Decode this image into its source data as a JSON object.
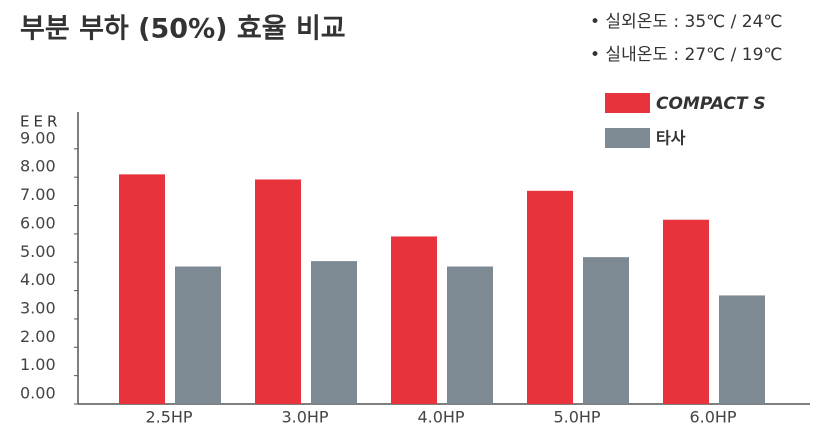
{
  "chart_data": {
    "type": "bar",
    "title": "부분 부하 (50%) 효율 비교",
    "notes": [
      "• 실외온도 : 35℃ / 24℃",
      "• 실내온도 : 27℃ / 19℃"
    ],
    "y_label": "EER",
    "categories": [
      "2.5HP",
      "3.0HP",
      "4.0HP",
      "5.0HP",
      "6.0HP"
    ],
    "series": [
      {
        "name": "COMPACT S",
        "color": "#e8323c",
        "values": [
          8.1,
          7.92,
          5.91,
          7.52,
          6.5
        ]
      },
      {
        "name": "타사",
        "color": "#7d8a93",
        "values": [
          4.85,
          5.04,
          4.85,
          5.18,
          3.83
        ]
      }
    ],
    "ylim": [
      0,
      10.3
    ],
    "yticks": [
      {
        "value": 0,
        "label": "0.00"
      },
      {
        "value": 1,
        "label": "1.00"
      },
      {
        "value": 2,
        "label": "2.00"
      },
      {
        "value": 3,
        "label": "3.00"
      },
      {
        "value": 4,
        "label": "4.00"
      },
      {
        "value": 5,
        "label": "5.00"
      },
      {
        "value": 6,
        "label": "6.00"
      },
      {
        "value": 7,
        "label": "7.00"
      },
      {
        "value": 8,
        "label": "8.00"
      },
      {
        "value": 9,
        "label": "9.00"
      }
    ],
    "grid": false,
    "legend": "top-right"
  }
}
